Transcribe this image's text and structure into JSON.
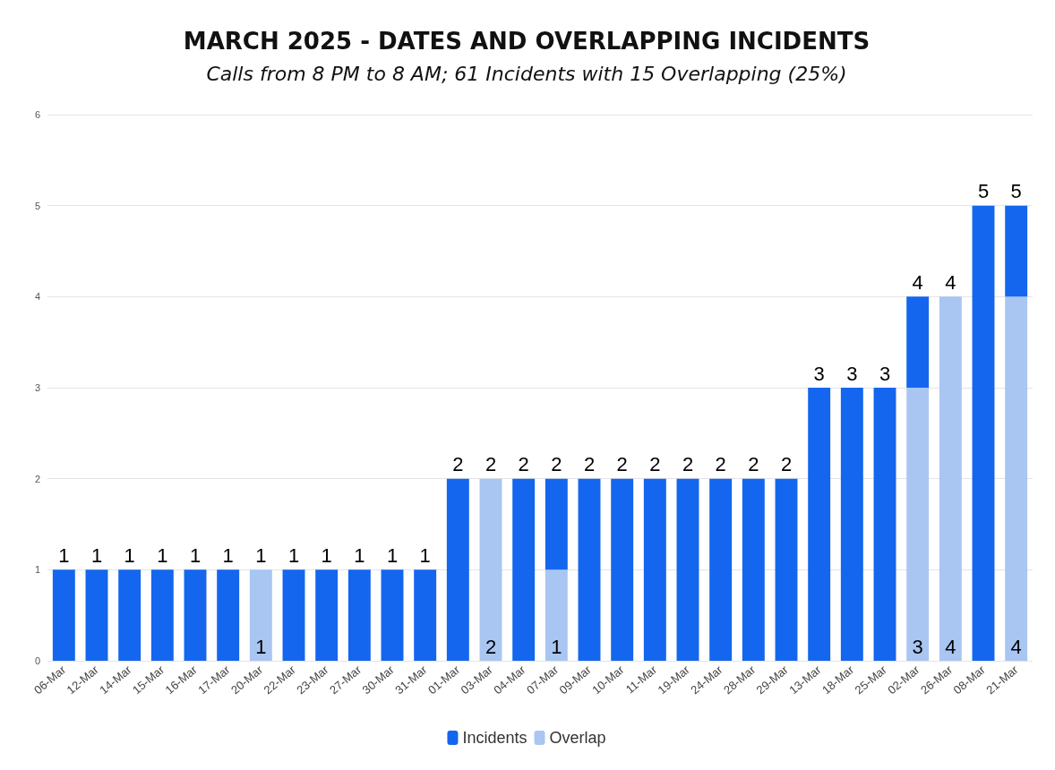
{
  "chart_data": {
    "type": "bar",
    "title": "MARCH 2025 - DATES AND OVERLAPPING INCIDENTS",
    "subtitle": "Calls from 8 PM to 8 AM; 61 Incidents with 15 Overlapping (25%)",
    "categories": [
      "06-Mar",
      "12-Mar",
      "14-Mar",
      "15-Mar",
      "16-Mar",
      "17-Mar",
      "20-Mar",
      "22-Mar",
      "23-Mar",
      "27-Mar",
      "30-Mar",
      "31-Mar",
      "01-Mar",
      "03-Mar",
      "04-Mar",
      "07-Mar",
      "09-Mar",
      "10-Mar",
      "11-Mar",
      "19-Mar",
      "24-Mar",
      "28-Mar",
      "29-Mar",
      "13-Mar",
      "18-Mar",
      "25-Mar",
      "02-Mar",
      "26-Mar",
      "08-Mar",
      "21-Mar"
    ],
    "stacked": true,
    "series": [
      {
        "name": "Overlap",
        "color": "#a9c6f2",
        "values": [
          0,
          0,
          0,
          0,
          0,
          0,
          1,
          0,
          0,
          0,
          0,
          0,
          0,
          2,
          0,
          1,
          0,
          0,
          0,
          0,
          0,
          0,
          0,
          0,
          0,
          0,
          3,
          4,
          0,
          4
        ],
        "value_labels": [
          null,
          null,
          null,
          null,
          null,
          null,
          "1",
          null,
          null,
          null,
          null,
          null,
          null,
          "2",
          null,
          "1",
          null,
          null,
          null,
          null,
          null,
          null,
          null,
          null,
          null,
          null,
          "3",
          "4",
          null,
          "4"
        ]
      },
      {
        "name": "Incidents",
        "color": "#1466ee",
        "values": [
          1,
          1,
          1,
          1,
          1,
          1,
          0,
          1,
          1,
          1,
          1,
          1,
          2,
          0,
          2,
          1,
          2,
          2,
          2,
          2,
          2,
          2,
          2,
          3,
          3,
          3,
          1,
          0,
          5,
          1
        ]
      }
    ],
    "totals": [
      "1",
      "1",
      "1",
      "1",
      "1",
      "1",
      "1",
      "1",
      "1",
      "1",
      "1",
      "1",
      "2",
      "2",
      "2",
      "2",
      "2",
      "2",
      "2",
      "2",
      "2",
      "2",
      "2",
      "3",
      "3",
      "3",
      "4",
      "4",
      "5",
      "5"
    ],
    "ylim": [
      0,
      6
    ],
    "yticks": [
      0,
      1,
      2,
      3,
      4,
      5,
      6
    ],
    "grid": "y",
    "legend": "bottom"
  }
}
